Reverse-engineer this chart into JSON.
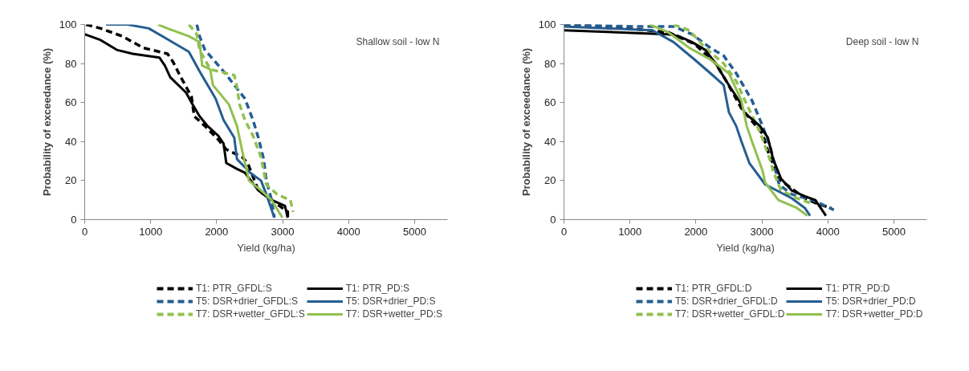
{
  "chart_data": [
    {
      "type": "line",
      "xlabel": "Yield (kg/ha)",
      "ylabel": "Probability of exceedance (%)",
      "annotations": [
        "Shallow soil - low N"
      ],
      "xlim": [
        0,
        5500
      ],
      "ylim": [
        0,
        100
      ],
      "xticks": [
        0,
        1000,
        2000,
        3000,
        4000,
        5000
      ],
      "yticks": [
        0,
        20,
        40,
        60,
        80,
        100
      ],
      "grid": false,
      "legend": "bottom",
      "marker": "none",
      "series": [
        {
          "name": "T1: PTR_GFDL:S",
          "color": "#000000",
          "line_style": "dashed",
          "x": [
            20,
            243,
            567,
            891,
            1255,
            1336,
            1457,
            1619,
            1660,
            1822,
            2024,
            2146,
            2389,
            2470,
            2632,
            2834,
            3077,
            3077
          ],
          "values": [
            100,
            98,
            94,
            88,
            85,
            81,
            73,
            63,
            53,
            48,
            41,
            36,
            32,
            29,
            15,
            10,
            4,
            1
          ]
        },
        {
          "name": "T5: DSR+drier_GFDL:S",
          "color": "#255e91",
          "line_style": "dashed",
          "x": [
            1700,
            1741,
            1822,
            2105,
            2267,
            2429,
            2551,
            2632,
            2713,
            2753,
            2834,
            2874
          ],
          "values": [
            100,
            94,
            87,
            76,
            69,
            62,
            51,
            42,
            31,
            20,
            10,
            1
          ]
        },
        {
          "name": "T7: DSR+wetter_GFDL:S",
          "color": "#92c050",
          "line_style": "dashed",
          "x": [
            1579,
            1700,
            1741,
            1903,
            2267,
            2308,
            2348,
            2429,
            2551,
            2672,
            2753,
            2915,
            3117,
            3158
          ],
          "values": [
            100,
            95,
            87,
            77,
            74,
            68,
            59,
            51,
            43,
            32,
            18,
            13,
            10,
            4
          ]
        },
        {
          "name": "T1: PTR_PD:S",
          "color": "#000000",
          "line_style": "solid",
          "x": [
            0,
            243,
            486,
            729,
            1134,
            1215,
            1296,
            1538,
            1619,
            1741,
            1862,
            2024,
            2105,
            2146,
            2308,
            2429,
            2632,
            2834,
            3036,
            3077
          ],
          "values": [
            95,
            92,
            87,
            85,
            83,
            79,
            73,
            65,
            60,
            53,
            48,
            43,
            39,
            29,
            26,
            24,
            15,
            10,
            7,
            1
          ]
        },
        {
          "name": "T5: DSR+drier_PD:S",
          "color": "#255e91",
          "line_style": "solid",
          "x": [
            324,
            648,
            972,
            1174,
            1377,
            1579,
            1741,
            1862,
            1984,
            2105,
            2267,
            2308,
            2510,
            2672,
            2753,
            2874
          ],
          "values": [
            100,
            100,
            98,
            94,
            90,
            86,
            76,
            69,
            62,
            51,
            42,
            31,
            24,
            20,
            13,
            1
          ]
        },
        {
          "name": "T7: DSR+wetter_PD:S",
          "color": "#92c050",
          "line_style": "solid",
          "x": [
            1113,
            1255,
            1579,
            1741,
            1781,
            1903,
            1943,
            2186,
            2308,
            2389,
            2490,
            2672,
            2834,
            2996
          ],
          "values": [
            100,
            98,
            94,
            91,
            79,
            77,
            69,
            59,
            48,
            35,
            20,
            15,
            10,
            1
          ]
        }
      ]
    },
    {
      "type": "line",
      "xlabel": "Yield (kg/ha)",
      "ylabel": "Probability of exceedance (%)",
      "annotations": [
        "Deep soil - low N"
      ],
      "xlim": [
        0,
        5500
      ],
      "ylim": [
        0,
        100
      ],
      "xticks": [
        0,
        1000,
        2000,
        3000,
        4000,
        5000
      ],
      "yticks": [
        0,
        20,
        40,
        60,
        80,
        100
      ],
      "grid": false,
      "legend": "bottom",
      "marker": "none",
      "series": [
        {
          "name": "T1: PTR_GFDL:D",
          "color": "#000000",
          "line_style": "dashed",
          "x": [
            0,
            625,
            1580,
            1980,
            2300,
            2460,
            2690,
            3010,
            3130,
            3170,
            3250,
            3410,
            3650,
            3850,
            4050
          ],
          "values": [
            100,
            99,
            96,
            90,
            80,
            71,
            57,
            44,
            31,
            29,
            21,
            17,
            11,
            8,
            6
          ]
        },
        {
          "name": "T5: DSR+drier_GFDL:D",
          "color": "#255e91",
          "line_style": "dashed",
          "x": [
            0,
            1020,
            1660,
            1940,
            2220,
            2420,
            2610,
            2850,
            3010,
            3130,
            3210,
            3260,
            3450,
            3770,
            4090
          ],
          "values": [
            100,
            99,
            99,
            95,
            88,
            84,
            75,
            61,
            48,
            37,
            26,
            18,
            13,
            10,
            5
          ]
        },
        {
          "name": "T7: DSR+wetter_GFDL:D",
          "color": "#92c050",
          "line_style": "dashed",
          "x": [
            1660,
            1900,
            2140,
            2420,
            2610,
            2770,
            2970,
            3130,
            3170,
            3290,
            3530,
            3770
          ],
          "values": [
            100,
            97,
            88,
            80,
            71,
            59,
            45,
            30,
            25,
            15,
            11,
            8
          ]
        },
        {
          "name": "T1: PTR_PD:D",
          "color": "#000000",
          "line_style": "solid",
          "x": [
            0,
            1580,
            1740,
            1940,
            2140,
            2300,
            2460,
            2690,
            2730,
            2970,
            3090,
            3170,
            3290,
            3450,
            3650,
            3810,
            3890,
            3970
          ],
          "values": [
            97,
            95,
            94,
            91,
            87,
            80,
            71,
            59,
            55,
            48,
            42,
            31,
            21,
            15,
            12,
            10,
            6,
            2
          ]
        },
        {
          "name": "T5: DSR+drier_PD:D",
          "color": "#255e91",
          "line_style": "solid",
          "x": [
            0,
            1340,
            1660,
            1980,
            2220,
            2420,
            2500,
            2610,
            2690,
            2810,
            3050,
            3450,
            3650,
            3730
          ],
          "values": [
            99,
            97,
            91,
            82,
            75,
            69,
            55,
            48,
            40,
            29,
            18,
            11,
            6,
            2
          ]
        },
        {
          "name": "T7: DSR+wetter_PD:D",
          "color": "#92c050",
          "line_style": "solid",
          "x": [
            1300,
            1580,
            1900,
            2220,
            2500,
            2690,
            2770,
            2850,
            3010,
            3050,
            3250,
            3530,
            3690
          ],
          "values": [
            100,
            96,
            88,
            82,
            75,
            61,
            48,
            40,
            25,
            19,
            10,
            6,
            2
          ]
        }
      ]
    }
  ]
}
